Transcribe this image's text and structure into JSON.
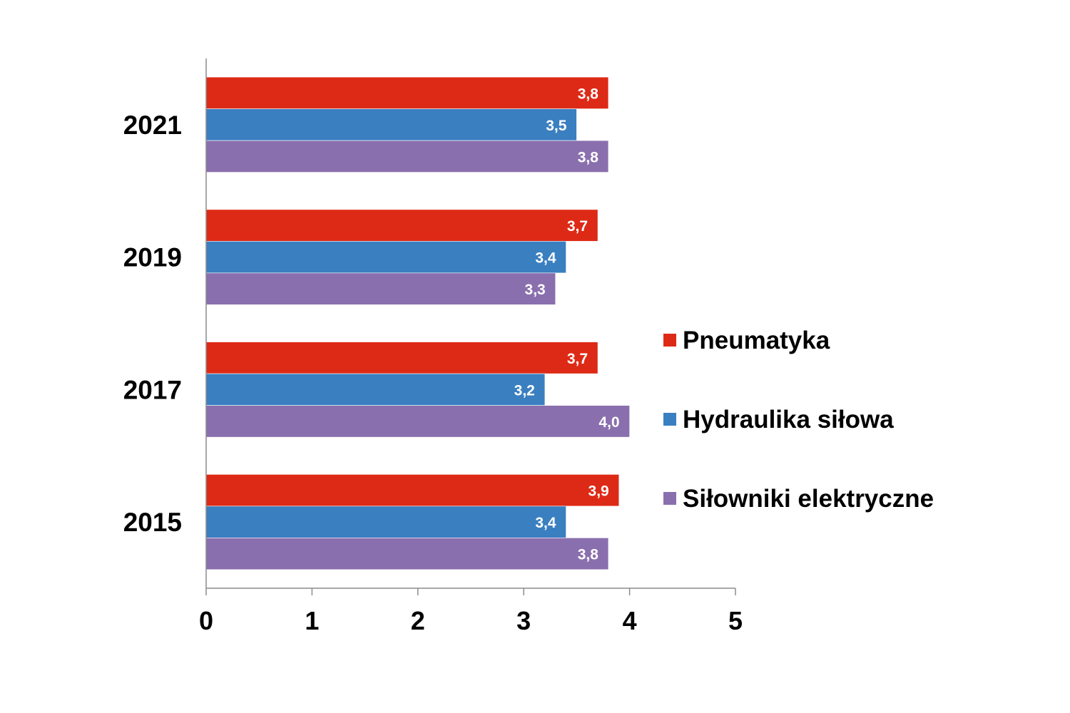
{
  "chart_data": {
    "type": "bar",
    "orientation": "horizontal",
    "categories": [
      "2021",
      "2019",
      "2017",
      "2015"
    ],
    "series": [
      {
        "name": "Pneumatyka",
        "color": "#dd2a16",
        "values": [
          3.8,
          3.7,
          3.7,
          3.9
        ],
        "labels": [
          "3,8",
          "3,7",
          "3,7",
          "3,9"
        ]
      },
      {
        "name": "Hydraulika siłowa",
        "color": "#3a7fc0",
        "values": [
          3.5,
          3.4,
          3.2,
          3.4
        ],
        "labels": [
          "3,5",
          "3,4",
          "3,2",
          "3,4"
        ]
      },
      {
        "name": "Siłowniki elektryczne",
        "color": "#8a6fae",
        "values": [
          3.8,
          3.3,
          4.0,
          3.8
        ],
        "labels": [
          "3,8",
          "3,3",
          "4,0",
          "3,8"
        ]
      }
    ],
    "xlim": [
      0,
      5
    ],
    "xticks": [
      0,
      1,
      2,
      3,
      4,
      5
    ],
    "xtick_labels": [
      "0",
      "1",
      "2",
      "3",
      "4",
      "5"
    ],
    "grid": false,
    "legend_position": "right"
  }
}
